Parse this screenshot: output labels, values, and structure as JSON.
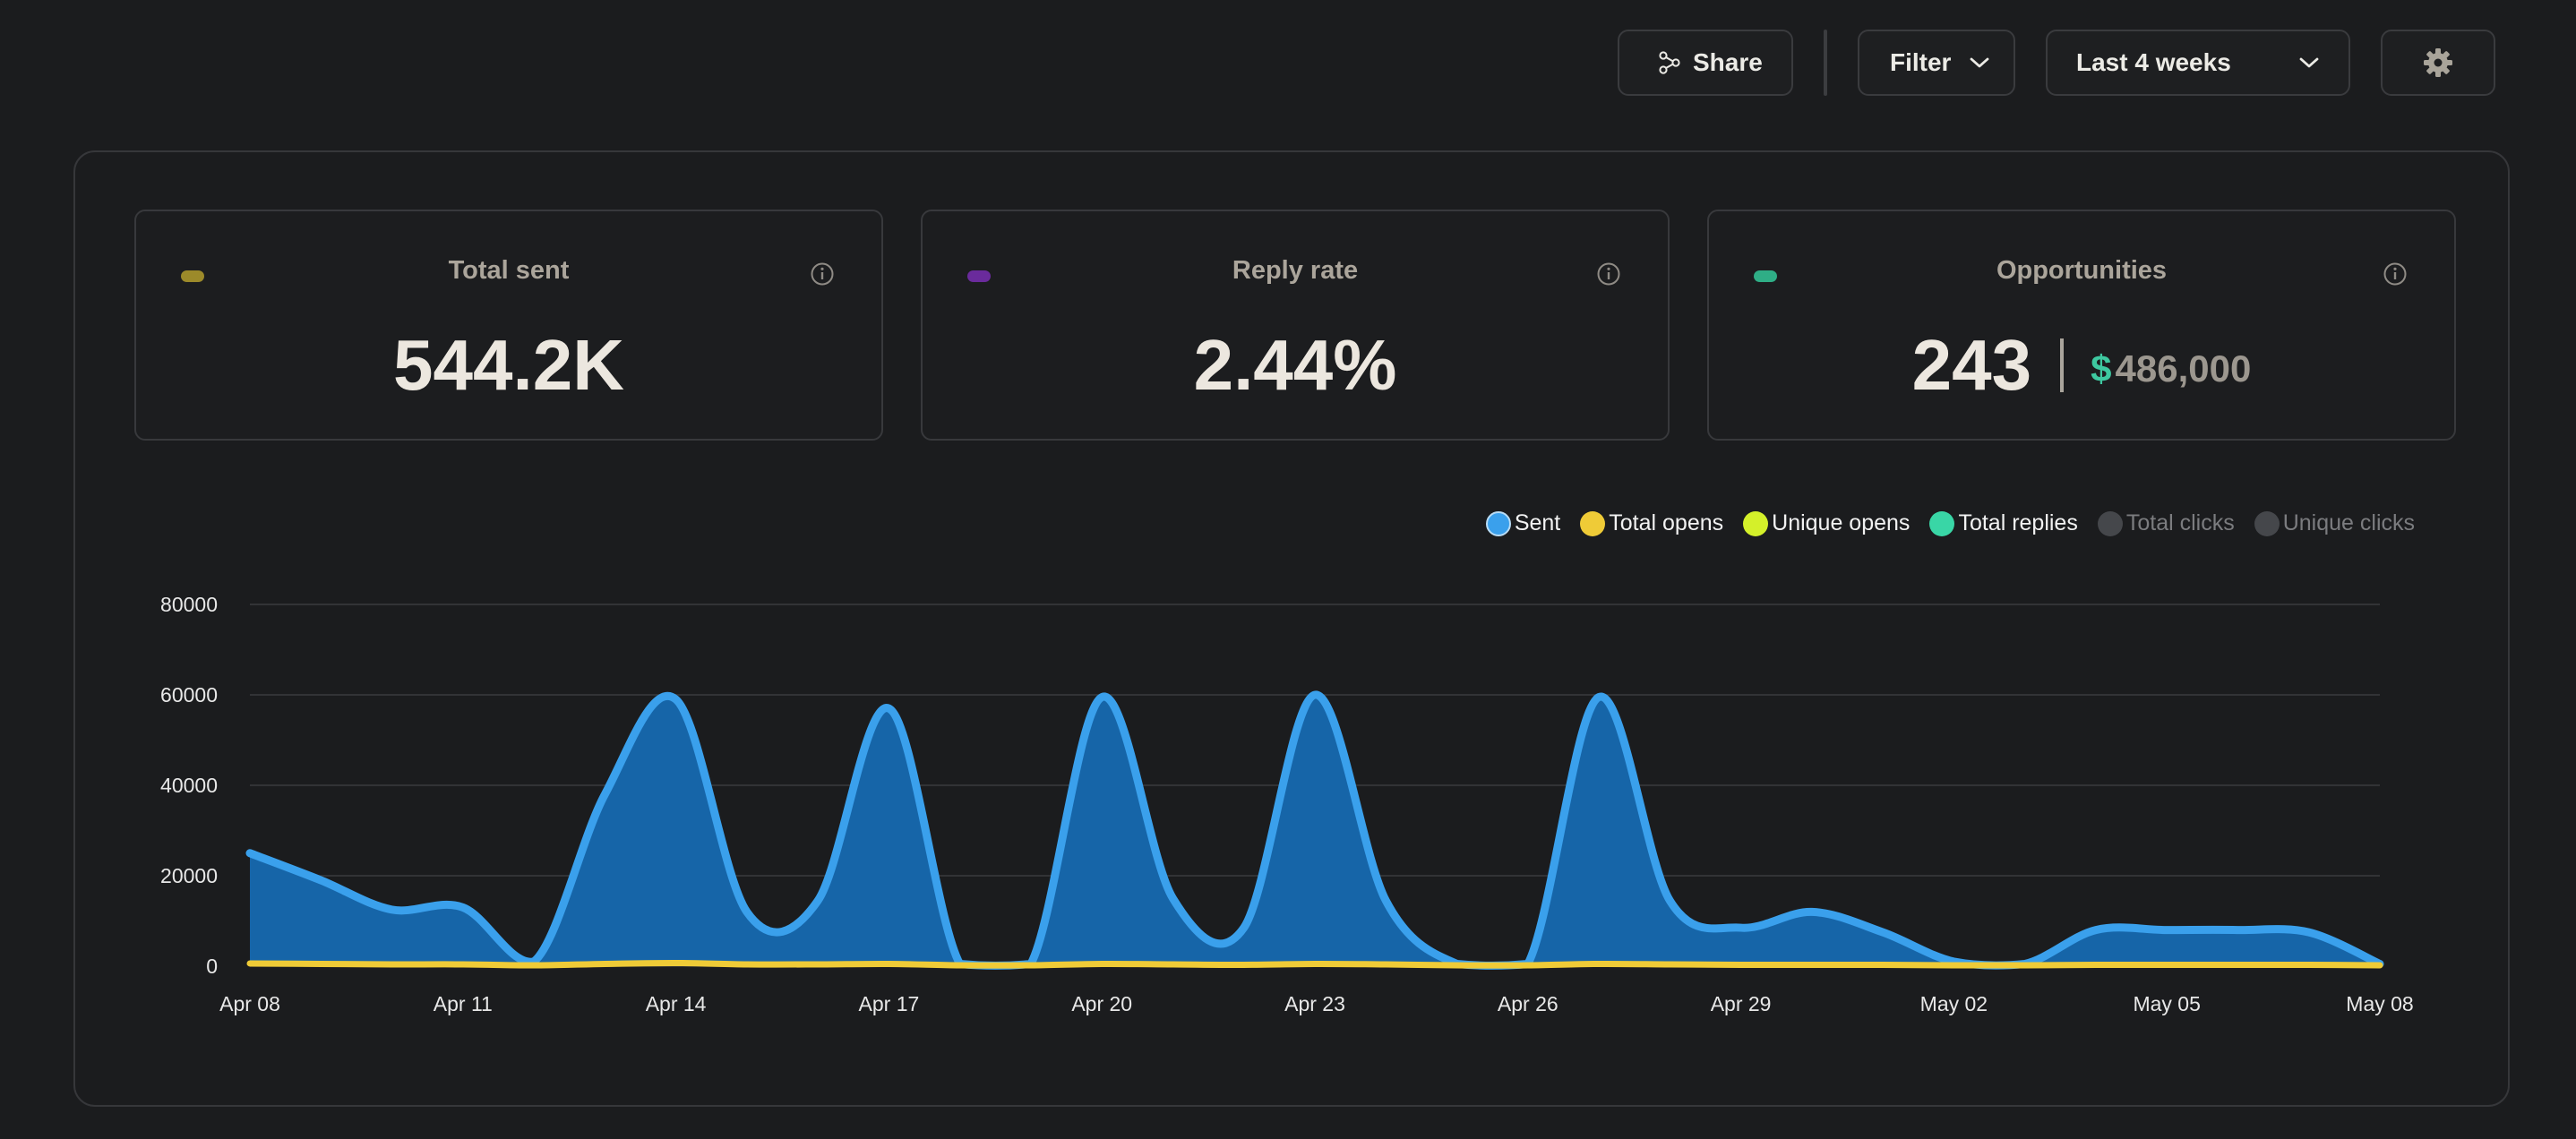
{
  "toolbar": {
    "share_label": "Share",
    "filter_label": "Filter",
    "range_label": "Last 4 weeks",
    "icons": {
      "share": "share-nodes-icon",
      "filter_chevron": "chevron-down-icon",
      "range_chevron": "chevron-down-icon",
      "settings": "gear-icon"
    }
  },
  "cards": [
    {
      "title": "Total sent",
      "value": "544.2K",
      "accent": "#9c8a2a"
    },
    {
      "title": "Reply rate",
      "value": "2.44%",
      "accent": "#6a2b9c"
    },
    {
      "title": "Opportunities",
      "value": "243",
      "dollar_sign": "$",
      "money": "486,000",
      "accent": "#2fae86"
    }
  ],
  "legend": [
    {
      "label": "Sent",
      "color": "#3aa0ec",
      "active": true
    },
    {
      "label": "Total opens",
      "color": "#efcb37",
      "active": true
    },
    {
      "label": "Unique opens",
      "color": "#d4f02a",
      "active": true
    },
    {
      "label": "Total replies",
      "color": "#39d6a6",
      "active": true
    },
    {
      "label": "Total clicks",
      "color": "#45474b",
      "active": false
    },
    {
      "label": "Unique clicks",
      "color": "#45474b",
      "active": false
    }
  ],
  "chart_data": {
    "type": "area",
    "ylim": [
      0,
      80000
    ],
    "yticks": [
      "80000",
      "60000",
      "40000",
      "20000",
      "0"
    ],
    "xticks": [
      "Apr 08",
      "Apr 11",
      "Apr 14",
      "Apr 17",
      "Apr 20",
      "Apr 23",
      "Apr 26",
      "Apr 29",
      "May 02",
      "May 05",
      "May 08"
    ],
    "grid": true,
    "series": [
      {
        "name": "Sent",
        "color": "#3aa0ec",
        "fill": "#1665a8",
        "points": [
          [
            "Apr 08",
            25000
          ],
          [
            "Apr 09",
            19000
          ],
          [
            "Apr 10",
            12500
          ],
          [
            "Apr 11",
            13000
          ],
          [
            "Apr 12",
            1000
          ],
          [
            "Apr 13",
            38000
          ],
          [
            "Apr 14",
            59000
          ],
          [
            "Apr 15",
            12000
          ],
          [
            "Apr 16",
            14500
          ],
          [
            "Apr 17",
            57000
          ],
          [
            "Apr 18",
            500
          ],
          [
            "Apr 19",
            500
          ],
          [
            "Apr 20",
            59500
          ],
          [
            "Apr 21",
            15000
          ],
          [
            "Apr 22",
            8500
          ],
          [
            "Apr 23",
            60000
          ],
          [
            "Apr 24",
            14500
          ],
          [
            "Apr 25",
            500
          ],
          [
            "Apr 26",
            500
          ],
          [
            "Apr 27",
            59500
          ],
          [
            "Apr 28",
            14500
          ],
          [
            "Apr 29",
            8500
          ],
          [
            "Apr 30",
            12000
          ],
          [
            "May 01",
            7500
          ],
          [
            "May 02",
            1000
          ],
          [
            "May 03",
            500
          ],
          [
            "May 04",
            8000
          ],
          [
            "May 05",
            8000
          ],
          [
            "May 06",
            8000
          ],
          [
            "May 07",
            7500
          ],
          [
            "May 08",
            500
          ]
        ]
      },
      {
        "name": "Total opens",
        "color": "#efcb37",
        "points": [
          [
            "Apr 08",
            600
          ],
          [
            "Apr 09",
            500
          ],
          [
            "Apr 10",
            400
          ],
          [
            "Apr 11",
            400
          ],
          [
            "Apr 12",
            200
          ],
          [
            "Apr 13",
            500
          ],
          [
            "Apr 14",
            700
          ],
          [
            "Apr 15",
            400
          ],
          [
            "Apr 16",
            400
          ],
          [
            "Apr 17",
            500
          ],
          [
            "Apr 18",
            200
          ],
          [
            "Apr 19",
            200
          ],
          [
            "Apr 20",
            500
          ],
          [
            "Apr 21",
            400
          ],
          [
            "Apr 22",
            300
          ],
          [
            "Apr 23",
            500
          ],
          [
            "Apr 24",
            400
          ],
          [
            "Apr 25",
            200
          ],
          [
            "Apr 26",
            200
          ],
          [
            "Apr 27",
            500
          ],
          [
            "Apr 28",
            400
          ],
          [
            "Apr 29",
            300
          ],
          [
            "Apr 30",
            300
          ],
          [
            "May 01",
            300
          ],
          [
            "May 02",
            200
          ],
          [
            "May 03",
            200
          ],
          [
            "May 04",
            300
          ],
          [
            "May 05",
            300
          ],
          [
            "May 06",
            300
          ],
          [
            "May 07",
            300
          ],
          [
            "May 08",
            200
          ]
        ]
      }
    ]
  }
}
